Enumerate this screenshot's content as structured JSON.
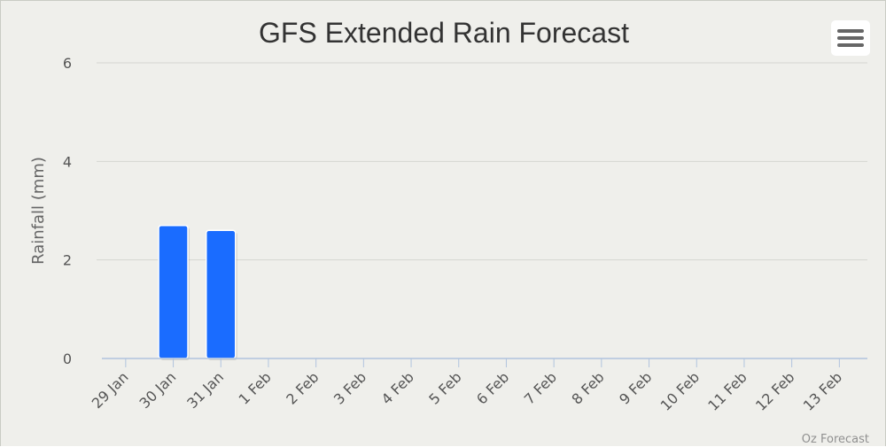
{
  "chart_data": {
    "type": "bar",
    "title": "GFS Extended Rain Forecast",
    "xlabel": "",
    "ylabel": "Rainfall (mm)",
    "categories": [
      "29 Jan",
      "30 Jan",
      "31 Jan",
      "1 Feb",
      "2 Feb",
      "3 Feb",
      "4 Feb",
      "5 Feb",
      "6 Feb",
      "7 Feb",
      "8 Feb",
      "9 Feb",
      "10 Feb",
      "11 Feb",
      "12 Feb",
      "13 Feb"
    ],
    "values": [
      0,
      2.7,
      2.6,
      0,
      0,
      0,
      0,
      0,
      0,
      0,
      0,
      0,
      0,
      0,
      0,
      0
    ],
    "ylim": [
      0,
      6
    ],
    "yticks": [
      0,
      2,
      4,
      6
    ],
    "grid": true,
    "legend": "none",
    "bar_color": "#1a6cff",
    "credit": "Oz Forecast"
  },
  "menu": {
    "icon": "hamburger-menu-icon"
  }
}
